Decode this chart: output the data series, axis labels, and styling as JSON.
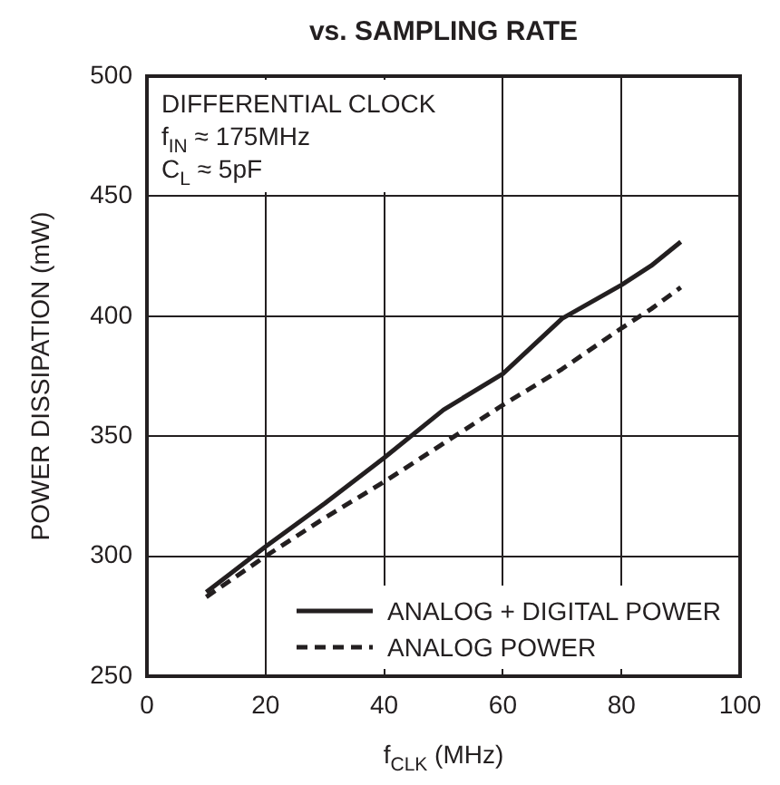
{
  "chart_data": {
    "type": "line",
    "title": "vs. SAMPLING RATE",
    "xlabel": "f$_{CLK}$ (MHz)",
    "ylabel": "POWER DISSIPATION (mW)",
    "annotations": [
      "DIFFERENTIAL CLOCK",
      "f$_{IN}$ ≈ 175MHz",
      "C$_{L}$ ≈ 5pF"
    ],
    "x": [
      10,
      20,
      30,
      40,
      50,
      60,
      70,
      80,
      85,
      90
    ],
    "series": [
      {
        "name": "ANALOG + DIGITAL POWER",
        "color": "#231f20",
        "line_style": "solid",
        "values": [
          285,
          304,
          322,
          341,
          361,
          376,
          399,
          413,
          421,
          431
        ]
      },
      {
        "name": "ANALOG POWER",
        "color": "#231f20",
        "line_style": "dashed",
        "values": [
          283,
          300,
          316,
          331,
          347,
          363,
          378,
          395,
          403,
          412
        ]
      }
    ],
    "xlim": [
      0,
      100
    ],
    "xticks": [
      0,
      20,
      40,
      60,
      80,
      100
    ],
    "ylim": [
      250,
      500
    ],
    "yticks": [
      250,
      300,
      350,
      400,
      450,
      500
    ],
    "grid": true,
    "legend": "bottom right",
    "marker": "none"
  }
}
